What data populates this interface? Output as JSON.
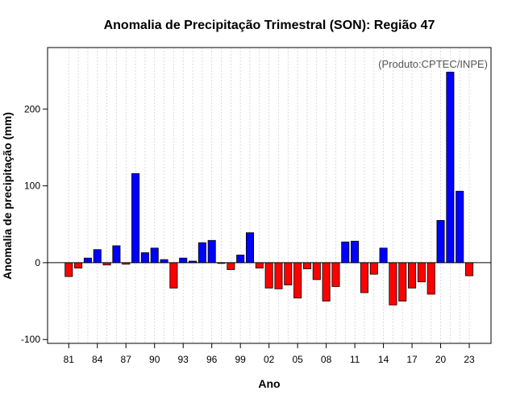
{
  "chart_data": {
    "type": "bar",
    "title": "Anomalia de Precipitação Trimestral (SON): Região 47",
    "xlabel": "Ano",
    "ylabel": "Anomalia de precipitação (mm)",
    "credit": "(Produto:CPTEC/INPE)",
    "ylim": [
      -105,
      280
    ],
    "yticks": [
      -100,
      0,
      100,
      200
    ],
    "xtick_labels": [
      "81",
      "84",
      "87",
      "90",
      "93",
      "96",
      "99",
      "02",
      "05",
      "08",
      "11",
      "14",
      "17",
      "20",
      "23"
    ],
    "categories": [
      1981,
      1982,
      1983,
      1984,
      1985,
      1986,
      1987,
      1988,
      1989,
      1990,
      1991,
      1992,
      1993,
      1994,
      1995,
      1996,
      1997,
      1998,
      1999,
      2000,
      2001,
      2002,
      2003,
      2004,
      2005,
      2006,
      2007,
      2008,
      2009,
      2010,
      2011,
      2012,
      2013,
      2014,
      2015,
      2016,
      2017,
      2018,
      2019,
      2020,
      2021,
      2022,
      2023
    ],
    "values": [
      -18,
      -7,
      6,
      17,
      -3,
      22,
      -2,
      116,
      13,
      19,
      4,
      -33,
      6,
      2,
      26,
      29,
      -1,
      -9,
      10,
      39,
      -7,
      -33,
      -34,
      -29,
      -46,
      -8,
      -22,
      -50,
      -31,
      27,
      28,
      -39,
      -15,
      19,
      -55,
      -50,
      -33,
      -25,
      -41,
      55,
      248,
      93,
      -17
    ],
    "colors": {
      "positive": "#0000ff",
      "negative": "#ff0000",
      "grid": "#d3d3d3",
      "zero_line": "#000000"
    },
    "grid": true
  }
}
